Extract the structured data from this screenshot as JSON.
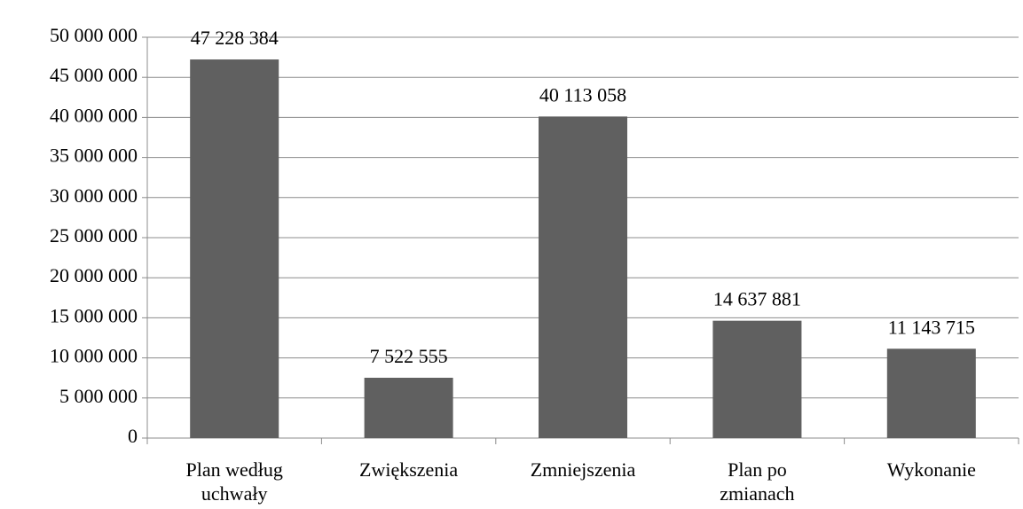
{
  "chart_data": {
    "type": "bar",
    "categories": [
      "Plan według uchwały",
      "Zwiększenia",
      "Zmniejszenia",
      "Plan po zmianach",
      "Wykonanie"
    ],
    "values": [
      47228384,
      7522555,
      40113058,
      14637881,
      11143715
    ],
    "value_labels": [
      "47 228 384",
      "7 522 555",
      "40 113 058",
      "14 637 881",
      "11 143 715"
    ],
    "color": "#606060",
    "ylim": [
      0,
      50000000
    ],
    "yticks": [
      0,
      {
        "value": 5000000,
        "label": "5 000 000"
      },
      {
        "value": 10000000,
        "label": "10 000 000"
      },
      {
        "value": 15000000,
        "label": "15 000 000"
      },
      {
        "value": 20000000,
        "label": "20 000 000"
      },
      {
        "value": 25000000,
        "label": "25 000 000"
      },
      {
        "value": 30000000,
        "label": "30 000 000"
      },
      {
        "value": 35000000,
        "label": "35 000 000"
      },
      {
        "value": 40000000,
        "label": "40 000 000"
      },
      {
        "value": 45000000,
        "label": "45 000 000"
      },
      {
        "value": 50000000,
        "label": "50 000 000"
      }
    ],
    "grid": true
  }
}
